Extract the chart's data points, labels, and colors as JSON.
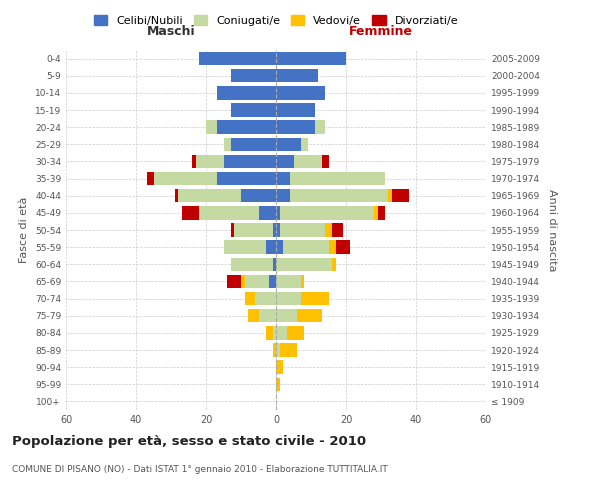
{
  "age_groups": [
    "100+",
    "95-99",
    "90-94",
    "85-89",
    "80-84",
    "75-79",
    "70-74",
    "65-69",
    "60-64",
    "55-59",
    "50-54",
    "45-49",
    "40-44",
    "35-39",
    "30-34",
    "25-29",
    "20-24",
    "15-19",
    "10-14",
    "5-9",
    "0-4"
  ],
  "birth_years": [
    "≤ 1909",
    "1910-1914",
    "1915-1919",
    "1920-1924",
    "1925-1929",
    "1930-1934",
    "1935-1939",
    "1940-1944",
    "1945-1949",
    "1950-1954",
    "1955-1959",
    "1960-1964",
    "1965-1969",
    "1970-1974",
    "1975-1979",
    "1980-1984",
    "1985-1989",
    "1990-1994",
    "1995-1999",
    "2000-2004",
    "2005-2009"
  ],
  "maschi": {
    "celibi": [
      0,
      0,
      0,
      0,
      0,
      0,
      0,
      2,
      1,
      3,
      1,
      5,
      10,
      17,
      15,
      13,
      17,
      13,
      17,
      13,
      22
    ],
    "coniugati": [
      0,
      0,
      0,
      0,
      1,
      5,
      6,
      7,
      12,
      12,
      11,
      17,
      18,
      18,
      8,
      2,
      3,
      0,
      0,
      0,
      0
    ],
    "vedovi": [
      0,
      0,
      0,
      1,
      2,
      3,
      3,
      1,
      0,
      0,
      0,
      0,
      0,
      0,
      0,
      0,
      0,
      0,
      0,
      0,
      0
    ],
    "divorziati": [
      0,
      0,
      0,
      0,
      0,
      0,
      0,
      4,
      0,
      0,
      1,
      5,
      1,
      2,
      1,
      0,
      0,
      0,
      0,
      0,
      0
    ]
  },
  "femmine": {
    "nubili": [
      0,
      0,
      0,
      0,
      0,
      0,
      0,
      0,
      0,
      2,
      1,
      1,
      4,
      4,
      5,
      7,
      11,
      11,
      14,
      12,
      20
    ],
    "coniugate": [
      0,
      0,
      0,
      1,
      3,
      6,
      7,
      7,
      16,
      13,
      13,
      27,
      28,
      27,
      8,
      2,
      3,
      0,
      0,
      0,
      0
    ],
    "vedove": [
      0,
      1,
      2,
      5,
      5,
      7,
      8,
      1,
      1,
      2,
      2,
      1,
      1,
      0,
      0,
      0,
      0,
      0,
      0,
      0,
      0
    ],
    "divorziate": [
      0,
      0,
      0,
      0,
      0,
      0,
      0,
      0,
      0,
      4,
      3,
      2,
      5,
      0,
      2,
      0,
      0,
      0,
      0,
      0,
      0
    ]
  },
  "colors": {
    "celibi": "#4472c4",
    "coniugati": "#c5d9a3",
    "vedovi": "#ffc000",
    "divorziati": "#c00000"
  },
  "xlim": 60,
  "title": "Popolazione per età, sesso e stato civile - 2010",
  "subtitle": "COMUNE DI PISANO (NO) - Dati ISTAT 1° gennaio 2010 - Elaborazione TUTTITALIA.IT",
  "ylabel_left": "Fasce di età",
  "ylabel_right": "Anni di nascita",
  "xlabel_maschi": "Maschi",
  "xlabel_femmine": "Femmine",
  "bg_color": "#ffffff",
  "grid_color": "#cccccc"
}
